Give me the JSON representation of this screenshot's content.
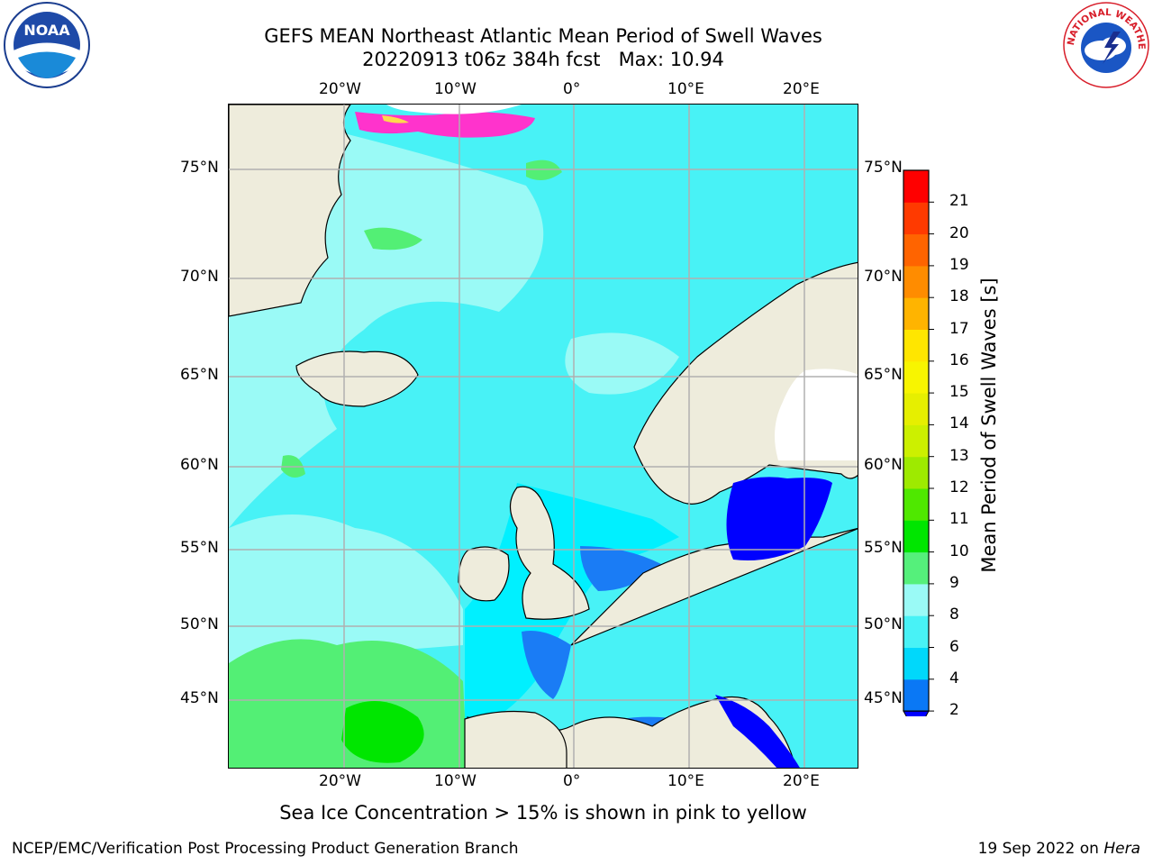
{
  "title": {
    "line1": "GEFS MEAN Northeast Atlantic Mean Period of Swell Waves",
    "line2": "20220913 t06z 384h fcst   Max: 10.94"
  },
  "map": {
    "lon_labels": [
      "20°W",
      "10°W",
      "0°",
      "10°E",
      "20°E"
    ],
    "lat_labels": [
      "75°N",
      "70°N",
      "65°N",
      "60°N",
      "55°N",
      "50°N",
      "45°N"
    ],
    "colors": {
      "land": "#eeecdc",
      "ocean_6_8": "#48f2f6",
      "ocean_8_9": "#9afaf6",
      "ocean_9_10": "#53ef75",
      "ocean_10_11": "#00e600",
      "ocean_4_6": "#00f0ff",
      "ocean_2_4": "#1a7cf5",
      "ocean_lt2": "#0000ff",
      "ice": "#ff33cc",
      "grid": "#b0b0b0"
    }
  },
  "colorbar": {
    "label": "Mean Period of Swell Waves [s]",
    "ticks": [
      "21",
      "20",
      "19",
      "18",
      "17",
      "16",
      "15",
      "14",
      "13",
      "12",
      "11",
      "10",
      "9",
      "8",
      "6",
      "4",
      "2"
    ],
    "colors_bottom_to_top": [
      "#0a78f5",
      "#00d8fb",
      "#48f2f6",
      "#9afaf6",
      "#55f07b",
      "#00e600",
      "#4fe800",
      "#9eea00",
      "#ccf000",
      "#e6ef00",
      "#f8f500",
      "#ffe600",
      "#ffb400",
      "#ff8c00",
      "#ff6400",
      "#ff3a00",
      "#ff0000"
    ],
    "extend_color": "#0000ff"
  },
  "caption": "Sea Ice Concentration > 15% is shown in pink to yellow",
  "footer": {
    "left": "NCEP/EMC/Verification Post Processing Product Generation Branch",
    "right_date": "19 Sep 2022 on ",
    "right_host": "Hera"
  },
  "logos": {
    "noaa_text": "NOAA",
    "nws_text": "NATIONAL WEATHER SERVICE"
  }
}
